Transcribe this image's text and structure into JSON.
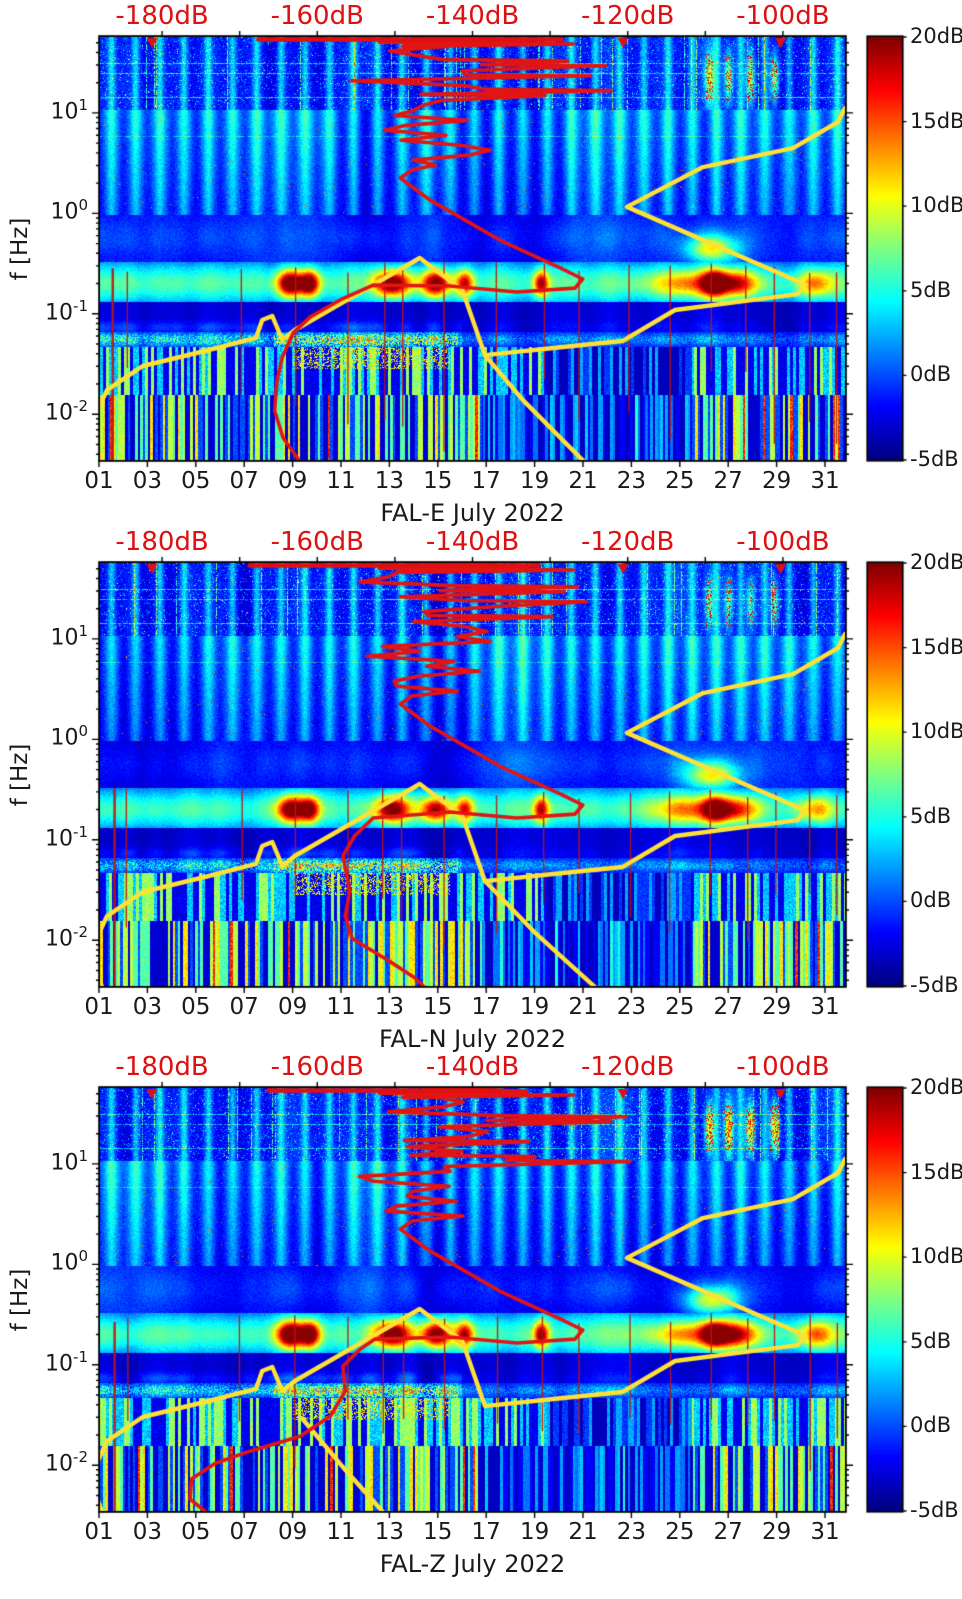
{
  "figure": {
    "background_color": "#ffffff",
    "description": "Three stacked seismic ambient-noise spectrogram panels (jet colormap) for station FAL components E, N, Z during July 2022, each with a right-hand dB colorbar, a red top axis in dB, and overlaid yellow and red power-spectral-density curves plotted against the top dB axis."
  },
  "chart_data": {
    "type": "heatmap",
    "subtype": "spectrogram-with-overlay-curves",
    "panels": [
      {
        "name": "FAL-E",
        "xlabel": "FAL-E July 2022",
        "seed": 11,
        "hotspot_gain": 1.0,
        "top_hot_intensity": 0.72,
        "red_top_smear_db": [
          -167.6,
          -128.5
        ],
        "red_tail_db_hz": [
          [
            -161.6,
            0.0028
          ],
          [
            -162.6,
            0.0037
          ],
          [
            -164.4,
            0.0058
          ],
          [
            -165.5,
            0.0109
          ],
          [
            -165.2,
            0.0217
          ],
          [
            -164.5,
            0.0371
          ],
          [
            -163.1,
            0.0645
          ],
          [
            -160.9,
            0.0932
          ],
          [
            -157.0,
            0.138
          ],
          [
            -152.8,
            0.193
          ]
        ],
        "yellow_branch_db_hz": [
          [
            -138.4,
            0.0388
          ],
          [
            -133.5,
            0.0138
          ],
          [
            -125.5,
            0.0033
          ]
        ]
      },
      {
        "name": "FAL-N",
        "xlabel": "FAL-N July 2022",
        "seed": 23,
        "hotspot_gain": 0.93,
        "top_hot_intensity": 0.55,
        "red_top_smear_db": [
          -168.7,
          -131.5
        ],
        "red_tail_db_hz": [
          [
            -145.1,
            0.0028
          ],
          [
            -147.4,
            0.0042
          ],
          [
            -150.6,
            0.0061
          ],
          [
            -155.5,
            0.0104
          ],
          [
            -156.4,
            0.0174
          ],
          [
            -155.8,
            0.0309
          ],
          [
            -156.7,
            0.069
          ],
          [
            -155.2,
            0.109
          ],
          [
            -152.8,
            0.165
          ]
        ],
        "yellow_branch_db_hz": [
          [
            -138.4,
            0.0388
          ],
          [
            -132.0,
            0.012
          ],
          [
            -124.0,
            0.0033
          ]
        ]
      },
      {
        "name": "FAL-Z",
        "xlabel": "FAL-Z July 2022",
        "seed": 37,
        "hotspot_gain": 1.05,
        "top_hot_intensity": 0.9,
        "red_top_smear_db": [
          -166.3,
          -136.5
        ],
        "red_tail_db_hz": [
          [
            -172.9,
            0.0028
          ],
          [
            -174.5,
            0.0035
          ],
          [
            -176.4,
            0.0046
          ],
          [
            -176.2,
            0.0073
          ],
          [
            -173.2,
            0.0104
          ],
          [
            -168.7,
            0.0138
          ],
          [
            -162.2,
            0.0194
          ],
          [
            -158.3,
            0.0309
          ],
          [
            -156.4,
            0.0547
          ],
          [
            -156.7,
            0.0966
          ],
          [
            -154.5,
            0.143
          ],
          [
            -152.6,
            0.18
          ]
        ],
        "yellow_branch_db_hz": [
          [
            -162.0,
            0.0295
          ],
          [
            -156.4,
            0.009
          ],
          [
            -151.5,
            0.0034
          ]
        ]
      }
    ],
    "axes": {
      "x_bottom": {
        "unit": "day of month (July 2022)",
        "tick_labels": [
          "01",
          "03",
          "05",
          "07",
          "09",
          "11",
          "13",
          "15",
          "17",
          "19",
          "21",
          "23",
          "25",
          "27",
          "29",
          "31"
        ],
        "tick_days": [
          1,
          3,
          5,
          7,
          9,
          11,
          13,
          15,
          17,
          19,
          21,
          23,
          25,
          27,
          29,
          31
        ],
        "minor_tick_step_days": 2,
        "range_days": [
          0.98,
          31.85
        ]
      },
      "y_left": {
        "label": "f [Hz]",
        "scale": "log",
        "tick_base": "10",
        "tick_exponents": [
          "1",
          "0",
          "-1",
          "-2"
        ],
        "tick_values_hz": [
          10,
          1,
          0.1,
          0.01
        ],
        "range_hz": [
          0.0035,
          57
        ]
      },
      "x_top": {
        "unit": "dB",
        "color": "#dd1111",
        "tick_labels": [
          "-180dB",
          "-160dB",
          "-140dB",
          "-120dB",
          "-100dB"
        ],
        "tick_values": [
          -180,
          -160,
          -140,
          -120,
          -100
        ],
        "minor_tick_step_db": 10,
        "range_db": [
          -188,
          -92
        ]
      },
      "colorbar": {
        "colormap": "jet",
        "tick_labels": [
          "20dB",
          "15dB",
          "10dB",
          "5dB",
          "0dB",
          "-5dB"
        ],
        "tick_values": [
          20,
          15,
          10,
          5,
          0,
          -5
        ],
        "range_db": [
          -5,
          20
        ]
      }
    },
    "overlays": {
      "colors": {
        "yellow": "#ffe135",
        "red": "#e31414"
      },
      "yellow_curve_db_hz": [
        [
          -187.4,
          0.0029
        ],
        [
          -188.8,
          0.0058
        ],
        [
          -188.4,
          0.0105
        ],
        [
          -187.1,
          0.0174
        ],
        [
          -182.5,
          0.0302
        ],
        [
          -174.5,
          0.0426
        ],
        [
          -167.9,
          0.0574
        ],
        [
          -167.1,
          0.0867
        ],
        [
          -165.8,
          0.095
        ],
        [
          -164.5,
          0.0548
        ],
        [
          -162.9,
          0.0689
        ],
        [
          -146.8,
          0.359
        ],
        [
          -141.3,
          0.172
        ],
        [
          -138.4,
          0.0388
        ],
        [
          -129.6,
          0.0456
        ],
        [
          -120.7,
          0.0535
        ],
        [
          -113.9,
          0.109
        ],
        [
          -98.1,
          0.157
        ],
        [
          -97.0,
          0.193
        ],
        [
          -120.1,
          1.16
        ],
        [
          -110.3,
          2.89
        ],
        [
          -98.7,
          4.47
        ],
        [
          -92.9,
          8.12
        ],
        [
          -92.0,
          11.2
        ]
      ],
      "red_curve_mid_db_hz": [
        [
          -142.9,
          0.189
        ],
        [
          -134.3,
          0.165
        ],
        [
          -126.8,
          0.18
        ],
        [
          -125.8,
          0.222
        ],
        [
          -128.7,
          0.286
        ],
        [
          -136.5,
          0.542
        ],
        [
          -145.5,
          1.36
        ],
        [
          -149.3,
          2.25
        ],
        [
          -147.8,
          2.7
        ]
      ],
      "red_high_freq_scribble": {
        "hz_range": [
          2.7,
          52
        ],
        "db_center": -146.5,
        "db_excursion_right_max": -120,
        "db_excursion_left_min": -158,
        "note": "noisy zig-zag spectrum segment above 2.7 Hz reaching the top axis"
      },
      "red_top_marker_db": [
        -181.3,
        -120.6,
        -100.3
      ],
      "description": "Yellow: reference noise-model curve with microseism peak near 0.2 Hz reaching about -97 dB; red: observed PSD curve with peak near 0.2 Hz at about -126 dB, both read on the red top dB axis."
    },
    "spectrogram_features": {
      "microseism_hotspots": [
        {
          "day": 8.9,
          "w": 0.55,
          "v": 1.0
        },
        {
          "day": 9.7,
          "w": 0.4,
          "v": 0.9
        },
        {
          "day": 13.1,
          "w": 0.7,
          "v": 0.95
        },
        {
          "day": 14.9,
          "w": 0.6,
          "v": 0.88
        },
        {
          "day": 16.1,
          "w": 0.35,
          "v": 0.7
        },
        {
          "day": 19.25,
          "w": 0.3,
          "v": 0.78
        },
        {
          "day": 26.4,
          "w": 0.5,
          "v": 0.72
        },
        {
          "day": 27.3,
          "w": 0.9,
          "v": 0.6
        },
        {
          "day": 25.5,
          "w": 1.6,
          "v": 0.45
        },
        {
          "day": 30.6,
          "w": 0.7,
          "v": 0.45
        }
      ],
      "upper_band_hot_column_days": [
        26.2,
        27.0,
        27.9,
        28.9
      ],
      "red_spike_days": [
        1.55,
        2.1,
        6.8,
        9.05,
        11.2,
        12.7,
        13.5,
        15.2,
        17.4,
        19.3,
        20.8,
        22.9,
        24.5,
        26.2,
        27.7,
        28.9,
        30.3,
        31.4
      ],
      "bands_note": "Daily vertical striping 1-50 Hz; bright cyan band and colored blobs 0.15-0.35 Hz (microseism); dark band near 0.1 Hz; strong narrow vertical stripes below 0.03 Hz; thin red spikes at scattered days."
    }
  }
}
